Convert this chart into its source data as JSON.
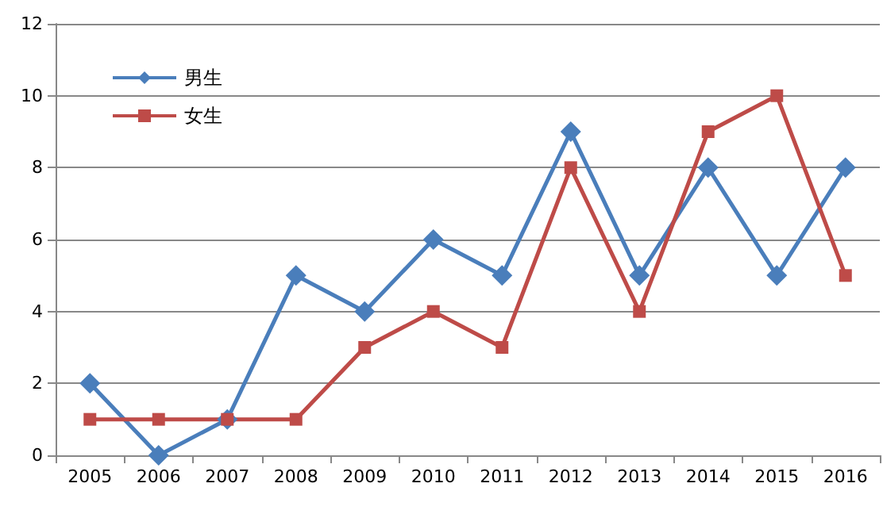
{
  "chart_data": {
    "type": "line",
    "categories": [
      "2005",
      "2006",
      "2007",
      "2008",
      "2009",
      "2010",
      "2011",
      "2012",
      "2013",
      "2014",
      "2015",
      "2016"
    ],
    "series": [
      {
        "name": "男生",
        "color": "#4a7ebb",
        "marker": "diamond",
        "values": [
          2,
          0,
          1,
          5,
          4,
          6,
          5,
          9,
          5,
          8,
          5,
          8
        ]
      },
      {
        "name": "女生",
        "color": "#be4b48",
        "marker": "square",
        "values": [
          1,
          1,
          1,
          1,
          3,
          4,
          3,
          8,
          4,
          9,
          10,
          5
        ]
      }
    ],
    "ylim": [
      0,
      12
    ],
    "yticks": [
      0,
      2,
      4,
      6,
      8,
      10,
      12
    ],
    "grid": "y",
    "legend": "top left"
  }
}
